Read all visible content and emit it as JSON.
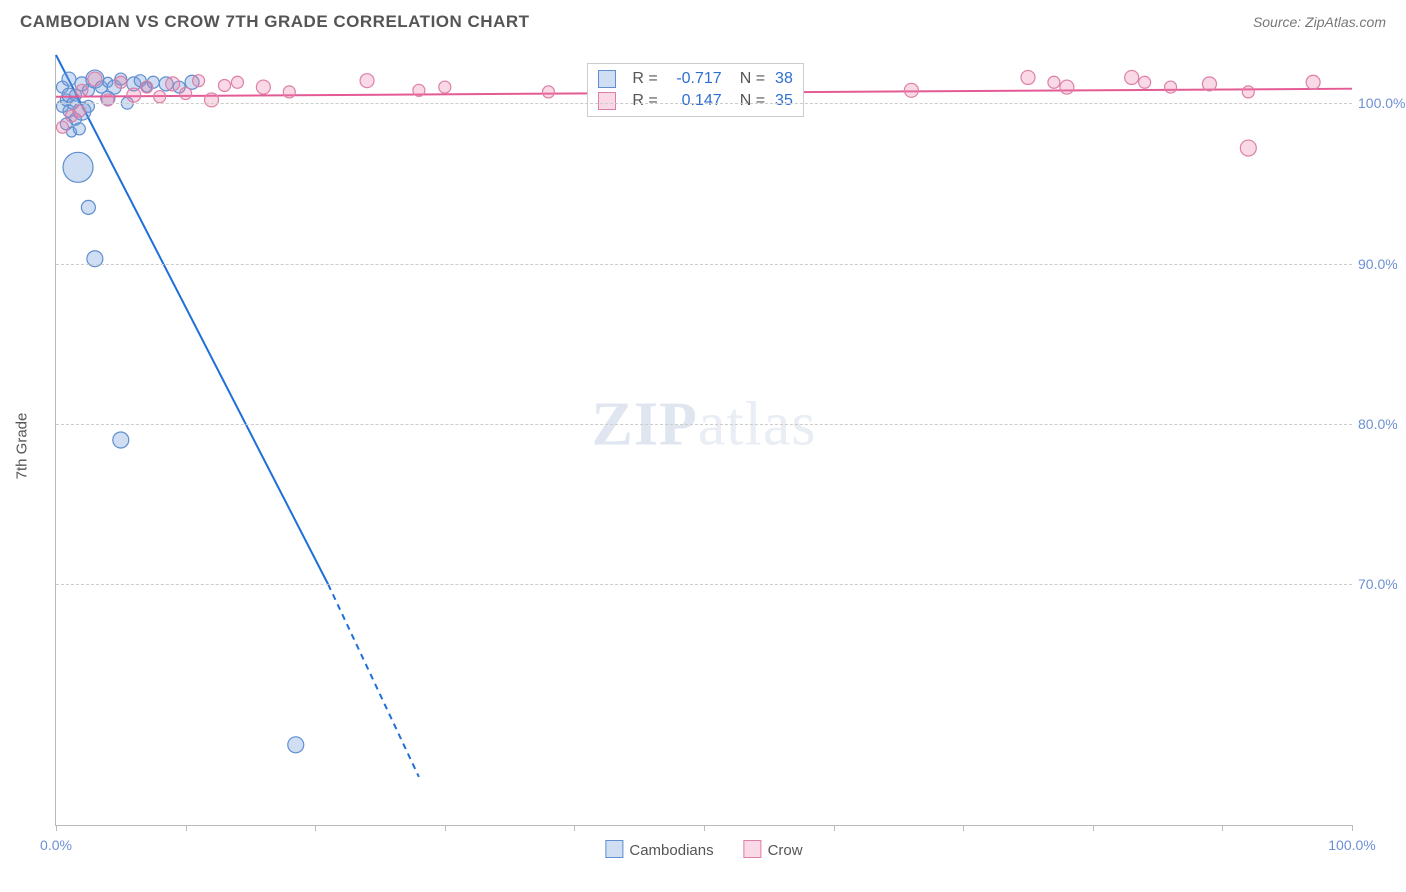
{
  "header": {
    "title": "CAMBODIAN VS CROW 7TH GRADE CORRELATION CHART",
    "source": "Source: ZipAtlas.com"
  },
  "chart": {
    "type": "scatter",
    "y_axis_title": "7th Grade",
    "watermark": "ZIPatlas",
    "background_color": "#ffffff",
    "grid_color": "#cccccc",
    "axis_color": "#bbbbbb",
    "tick_label_color": "#6d8fd6",
    "xlim": [
      0,
      100
    ],
    "ylim": [
      55,
      103
    ],
    "x_ticks": [
      0,
      10,
      20,
      30,
      40,
      50,
      60,
      70,
      80,
      90,
      100
    ],
    "x_tick_labels": {
      "0": "0.0%",
      "100": "100.0%"
    },
    "y_ticks": [
      70,
      80,
      90,
      100
    ],
    "y_tick_labels": {
      "70": "70.0%",
      "80": "80.0%",
      "90": "90.0%",
      "100": "100.0%"
    },
    "series": [
      {
        "name": "Cambodians",
        "fill_color": "rgba(120,160,220,0.35)",
        "stroke_color": "#5f8fcf",
        "line_color": "#1f6fd8",
        "line_width": 2,
        "trend": {
          "x1": 0,
          "y1": 103,
          "x2": 21,
          "y2": 70,
          "dash_from_x": 21,
          "dash_to_x": 28,
          "dash_to_y": 58
        },
        "points": [
          {
            "x": 0.5,
            "y": 101,
            "r": 6
          },
          {
            "x": 1.0,
            "y": 101.5,
            "r": 7
          },
          {
            "x": 1.5,
            "y": 100.5,
            "r": 6
          },
          {
            "x": 2.0,
            "y": 101.2,
            "r": 7
          },
          {
            "x": 2.5,
            "y": 100.8,
            "r": 6
          },
          {
            "x": 3.0,
            "y": 101.5,
            "r": 9
          },
          {
            "x": 3.5,
            "y": 101.0,
            "r": 6
          },
          {
            "x": 4.0,
            "y": 101.3,
            "r": 5
          },
          {
            "x": 4.5,
            "y": 101.0,
            "r": 7
          },
          {
            "x": 5.0,
            "y": 101.5,
            "r": 6
          },
          {
            "x": 5.5,
            "y": 100.0,
            "r": 6
          },
          {
            "x": 6.0,
            "y": 101.2,
            "r": 7
          },
          {
            "x": 6.5,
            "y": 101.4,
            "r": 6
          },
          {
            "x": 7.0,
            "y": 101.0,
            "r": 5
          },
          {
            "x": 7.5,
            "y": 101.3,
            "r": 6
          },
          {
            "x": 8.5,
            "y": 101.2,
            "r": 7
          },
          {
            "x": 9.5,
            "y": 101.0,
            "r": 6
          },
          {
            "x": 10.5,
            "y": 101.3,
            "r": 7
          },
          {
            "x": 1.0,
            "y": 99.5,
            "r": 6
          },
          {
            "x": 1.5,
            "y": 99.0,
            "r": 6
          },
          {
            "x": 2.0,
            "y": 99.5,
            "r": 9
          },
          {
            "x": 2.5,
            "y": 99.8,
            "r": 6
          },
          {
            "x": 0.8,
            "y": 98.7,
            "r": 6
          },
          {
            "x": 1.2,
            "y": 98.2,
            "r": 5
          },
          {
            "x": 1.8,
            "y": 98.4,
            "r": 6
          },
          {
            "x": 0.5,
            "y": 99.8,
            "r": 6
          },
          {
            "x": 0.8,
            "y": 100.2,
            "r": 6
          },
          {
            "x": 1.0,
            "y": 100.5,
            "r": 7
          },
          {
            "x": 1.3,
            "y": 100.0,
            "r": 6
          },
          {
            "x": 4.0,
            "y": 100.3,
            "r": 7
          },
          {
            "x": 1.7,
            "y": 96.0,
            "r": 15
          },
          {
            "x": 2.5,
            "y": 93.5,
            "r": 7
          },
          {
            "x": 3.0,
            "y": 90.3,
            "r": 8
          },
          {
            "x": 5.0,
            "y": 79.0,
            "r": 8
          },
          {
            "x": 18.5,
            "y": 60.0,
            "r": 8
          }
        ]
      },
      {
        "name": "Crow",
        "fill_color": "rgba(235,130,170,0.30)",
        "stroke_color": "#dd7fa8",
        "line_color": "#e45a94",
        "line_width": 2,
        "trend": {
          "x1": 0,
          "y1": 100.4,
          "x2": 100,
          "y2": 100.9
        },
        "points": [
          {
            "x": 2,
            "y": 100.8,
            "r": 6
          },
          {
            "x": 3,
            "y": 101.5,
            "r": 7
          },
          {
            "x": 4,
            "y": 100.2,
            "r": 6
          },
          {
            "x": 5,
            "y": 101.3,
            "r": 6
          },
          {
            "x": 6,
            "y": 100.5,
            "r": 7
          },
          {
            "x": 7,
            "y": 101.0,
            "r": 6
          },
          {
            "x": 8,
            "y": 100.4,
            "r": 6
          },
          {
            "x": 9,
            "y": 101.2,
            "r": 7
          },
          {
            "x": 10,
            "y": 100.6,
            "r": 6
          },
          {
            "x": 11,
            "y": 101.4,
            "r": 6
          },
          {
            "x": 12,
            "y": 100.2,
            "r": 7
          },
          {
            "x": 13,
            "y": 101.1,
            "r": 6
          },
          {
            "x": 14,
            "y": 101.3,
            "r": 6
          },
          {
            "x": 16,
            "y": 101.0,
            "r": 7
          },
          {
            "x": 18,
            "y": 100.7,
            "r": 6
          },
          {
            "x": 24,
            "y": 101.4,
            "r": 7
          },
          {
            "x": 28,
            "y": 100.8,
            "r": 6
          },
          {
            "x": 30,
            "y": 101.0,
            "r": 6
          },
          {
            "x": 38,
            "y": 100.7,
            "r": 6
          },
          {
            "x": 66,
            "y": 100.8,
            "r": 7
          },
          {
            "x": 75,
            "y": 101.6,
            "r": 7
          },
          {
            "x": 77,
            "y": 101.3,
            "r": 6
          },
          {
            "x": 78,
            "y": 101.0,
            "r": 7
          },
          {
            "x": 83,
            "y": 101.6,
            "r": 7
          },
          {
            "x": 84,
            "y": 101.3,
            "r": 6
          },
          {
            "x": 86,
            "y": 101.0,
            "r": 6
          },
          {
            "x": 89,
            "y": 101.2,
            "r": 7
          },
          {
            "x": 92,
            "y": 100.7,
            "r": 6
          },
          {
            "x": 97,
            "y": 101.3,
            "r": 7
          },
          {
            "x": 92,
            "y": 97.2,
            "r": 8
          },
          {
            "x": 0.5,
            "y": 98.5,
            "r": 6
          },
          {
            "x": 1.2,
            "y": 99.2,
            "r": 6
          },
          {
            "x": 1.8,
            "y": 99.5,
            "r": 6
          }
        ]
      }
    ],
    "correlation_box": {
      "rows": [
        {
          "swatch_fill": "rgba(120,160,220,0.35)",
          "swatch_stroke": "#5f8fcf",
          "r_label": "R =",
          "r_value": "-0.717",
          "n_label": "N =",
          "n_value": "38"
        },
        {
          "swatch_fill": "rgba(235,130,170,0.30)",
          "swatch_stroke": "#dd7fa8",
          "r_label": "R =",
          "r_value": "0.147",
          "n_label": "N =",
          "n_value": "35"
        }
      ]
    },
    "legend": [
      {
        "label": "Cambodians",
        "fill": "rgba(120,160,220,0.35)",
        "stroke": "#5f8fcf"
      },
      {
        "label": "Crow",
        "fill": "rgba(235,130,170,0.30)",
        "stroke": "#dd7fa8"
      }
    ]
  }
}
